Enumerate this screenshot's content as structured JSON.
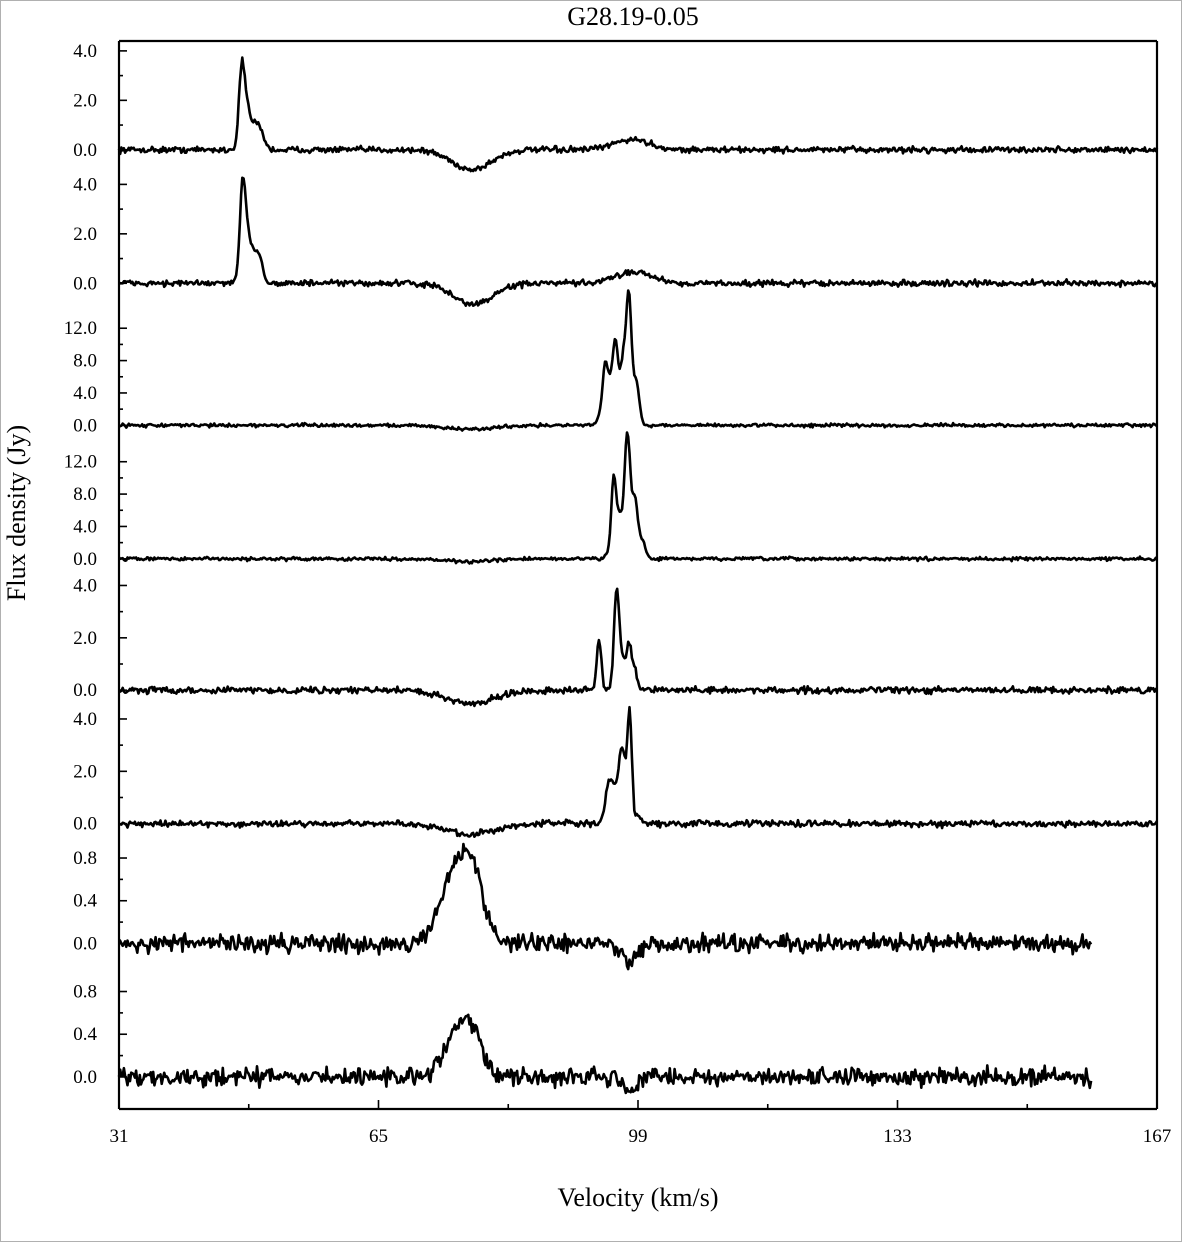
{
  "chart_data": {
    "type": "line",
    "title": "G28.19-0.05",
    "xlabel": "Velocity (km/s)",
    "ylabel": "Flux density (Jy)",
    "xlim": [
      31,
      167
    ],
    "x_ticks": [
      "31",
      "65",
      "99",
      "133",
      "167"
    ],
    "x_tick_values": [
      31,
      65,
      99,
      133,
      167
    ],
    "grid": false,
    "legend": "none",
    "panels": [
      {
        "ylim": [
          -1.0,
          4.4
        ],
        "y_ticks": [
          "0.0",
          "2.0",
          "4.0"
        ],
        "y_tick_values": [
          0,
          2,
          4
        ],
        "x_range": [
          31,
          167
        ],
        "noise": 0.06,
        "features": [
          {
            "v": 47.1,
            "amp": 3.5,
            "w": 0.38
          },
          {
            "v": 47.9,
            "amp": 1.5,
            "w": 0.35
          },
          {
            "v": 48.7,
            "amp": 0.6,
            "w": 0.35
          },
          {
            "v": 49.4,
            "amp": 0.9,
            "w": 0.55
          },
          {
            "v": 77.2,
            "amp": -0.8,
            "w": 2.6
          },
          {
            "v": 98.2,
            "amp": 0.42,
            "w": 2.3
          }
        ]
      },
      {
        "ylim": [
          -1.0,
          4.4
        ],
        "y_ticks": [
          "0.0",
          "2.0",
          "4.0"
        ],
        "y_tick_values": [
          0,
          2,
          4
        ],
        "x_range": [
          31,
          167
        ],
        "noise": 0.06,
        "features": [
          {
            "v": 47.2,
            "amp": 4.1,
            "w": 0.36
          },
          {
            "v": 47.9,
            "amp": 1.6,
            "w": 0.35
          },
          {
            "v": 48.5,
            "amp": 0.8,
            "w": 0.35
          },
          {
            "v": 49.3,
            "amp": 1.2,
            "w": 0.5
          },
          {
            "v": 77.4,
            "amp": -0.85,
            "w": 2.6
          },
          {
            "v": 98.5,
            "amp": 0.48,
            "w": 2.3
          }
        ]
      },
      {
        "ylim": [
          -2.0,
          14.5
        ],
        "y_ticks": [
          "0.0",
          "4.0",
          "8.0",
          "12.0"
        ],
        "y_tick_values": [
          0,
          4,
          8,
          12
        ],
        "x_range": [
          31,
          167
        ],
        "noise": 0.1,
        "features": [
          {
            "v": 94.7,
            "amp": 6.7,
            "w": 0.35
          },
          {
            "v": 95.5,
            "amp": 4.6,
            "w": 0.45
          },
          {
            "v": 96.1,
            "amp": 8.4,
            "w": 0.35
          },
          {
            "v": 97.1,
            "amp": 8.2,
            "w": 0.4
          },
          {
            "v": 97.8,
            "amp": 12.5,
            "w": 0.32
          },
          {
            "v": 98.3,
            "amp": 3.8,
            "w": 0.5
          },
          {
            "v": 98.9,
            "amp": 3.3,
            "w": 0.35
          },
          {
            "v": 94.0,
            "amp": 1.0,
            "w": 0.4
          },
          {
            "v": 76.9,
            "amp": -0.5,
            "w": 3.0
          }
        ]
      },
      {
        "ylim": [
          -2.0,
          14.5
        ],
        "y_ticks": [
          "0.0",
          "4.0",
          "8.0",
          "12.0"
        ],
        "y_tick_values": [
          0,
          4,
          8,
          12
        ],
        "x_range": [
          31,
          167
        ],
        "noise": 0.1,
        "features": [
          {
            "v": 95.8,
            "amp": 9.7,
            "w": 0.3
          },
          {
            "v": 96.5,
            "amp": 5.1,
            "w": 0.35
          },
          {
            "v": 97.6,
            "amp": 15.5,
            "w": 0.4
          },
          {
            "v": 98.6,
            "amp": 6.9,
            "w": 0.35
          },
          {
            "v": 99.5,
            "amp": 2.3,
            "w": 0.45
          },
          {
            "v": 95.1,
            "amp": 0.7,
            "w": 0.35
          },
          {
            "v": 77.0,
            "amp": -0.35,
            "w": 3.0
          }
        ]
      },
      {
        "ylim": [
          -0.7,
          4.4
        ],
        "y_ticks": [
          "0.0",
          "2.0",
          "4.0"
        ],
        "y_tick_values": [
          0,
          2,
          4
        ],
        "x_range": [
          31,
          167
        ],
        "noise": 0.06,
        "features": [
          {
            "v": 93.9,
            "amp": 1.95,
            "w": 0.3
          },
          {
            "v": 96.2,
            "amp": 3.8,
            "w": 0.35
          },
          {
            "v": 97.0,
            "amp": 1.0,
            "w": 0.35
          },
          {
            "v": 97.8,
            "amp": 1.7,
            "w": 0.3
          },
          {
            "v": 98.5,
            "amp": 0.8,
            "w": 0.35
          },
          {
            "v": 77.0,
            "amp": -0.5,
            "w": 3.2
          }
        ]
      },
      {
        "ylim": [
          -0.7,
          4.4
        ],
        "y_ticks": [
          "0.0",
          "2.0",
          "4.0"
        ],
        "y_tick_values": [
          0,
          2,
          4
        ],
        "x_range": [
          31,
          167
        ],
        "noise": 0.06,
        "features": [
          {
            "v": 95.2,
            "amp": 1.55,
            "w": 0.45
          },
          {
            "v": 96.0,
            "amp": 1.1,
            "w": 0.35
          },
          {
            "v": 96.7,
            "amp": 2.2,
            "w": 0.3
          },
          {
            "v": 97.2,
            "amp": 1.7,
            "w": 0.3
          },
          {
            "v": 97.9,
            "amp": 4.2,
            "w": 0.3
          },
          {
            "v": 99.0,
            "amp": 0.3,
            "w": 0.4
          },
          {
            "v": 77.0,
            "amp": -0.4,
            "w": 3.2
          }
        ]
      },
      {
        "ylim": [
          -0.3,
          0.95
        ],
        "y_ticks": [
          "0.0",
          "0.4",
          "0.8"
        ],
        "y_tick_values": [
          0,
          0.4,
          0.8
        ],
        "x_range": [
          31,
          158.5
        ],
        "noise": 0.04,
        "features": [
          {
            "v": 75.5,
            "amp": 0.74,
            "w": 2.1
          },
          {
            "v": 77.6,
            "amp": 0.32,
            "w": 1.3
          },
          {
            "v": 97.9,
            "amp": -0.2,
            "w": 0.9
          }
        ]
      },
      {
        "ylim": [
          -0.3,
          0.95
        ],
        "y_ticks": [
          "0.0",
          "0.4",
          "0.8"
        ],
        "y_tick_values": [
          0,
          0.4,
          0.8
        ],
        "x_range": [
          31,
          158.5
        ],
        "noise": 0.04,
        "features": [
          {
            "v": 75.6,
            "amp": 0.46,
            "w": 1.9
          },
          {
            "v": 77.4,
            "amp": 0.2,
            "w": 1.2
          },
          {
            "v": 97.9,
            "amp": -0.12,
            "w": 0.9
          }
        ]
      }
    ]
  }
}
